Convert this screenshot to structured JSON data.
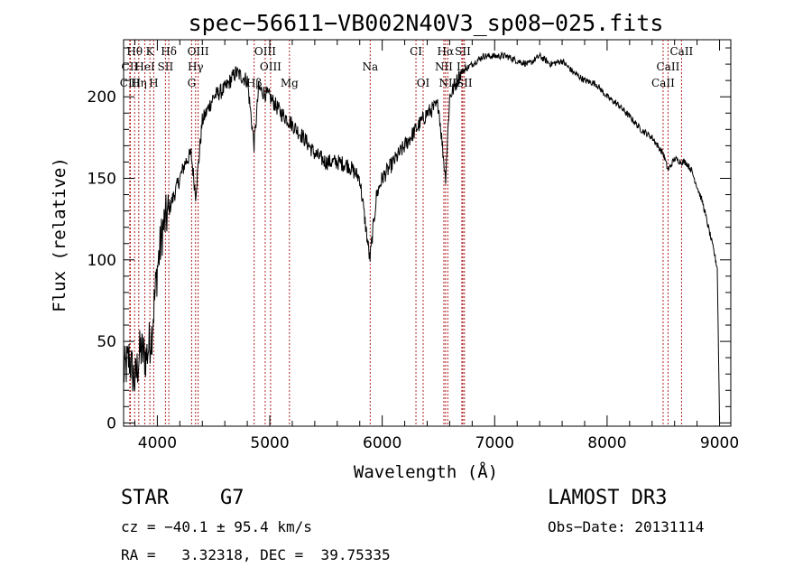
{
  "chart_data": {
    "type": "line",
    "title": "spec−56611−VB002N40V3_sp08−025.fits",
    "xlabel": "Wavelength (Å)",
    "ylabel": "Flux (relative)",
    "xlim": [
      3700,
      9100
    ],
    "ylim": [
      -2,
      235
    ],
    "xticks": [
      4000,
      5000,
      6000,
      7000,
      8000,
      9000
    ],
    "yticks": [
      0,
      50,
      100,
      150,
      200
    ],
    "series": [
      {
        "name": "spectrum",
        "x": [
          3700,
          3750,
          3800,
          3850,
          3900,
          3950,
          4000,
          4050,
          4100,
          4150,
          4200,
          4250,
          4300,
          4340,
          4400,
          4500,
          4600,
          4700,
          4800,
          4861,
          4900,
          5000,
          5100,
          5175,
          5300,
          5400,
          5500,
          5600,
          5700,
          5800,
          5890,
          5950,
          6000,
          6100,
          6200,
          6300,
          6400,
          6500,
          6563,
          6600,
          6700,
          6800,
          6900,
          7000,
          7100,
          7200,
          7300,
          7400,
          7500,
          7600,
          7700,
          7800,
          7900,
          8000,
          8100,
          8200,
          8300,
          8400,
          8500,
          8542,
          8600,
          8662,
          8700,
          8750,
          8800,
          8850,
          8900,
          8950,
          8980,
          9000
        ],
        "y": [
          30,
          40,
          25,
          45,
          40,
          55,
          95,
          120,
          130,
          140,
          150,
          160,
          165,
          140,
          185,
          200,
          205,
          215,
          210,
          170,
          205,
          200,
          190,
          185,
          175,
          165,
          160,
          160,
          158,
          150,
          100,
          140,
          150,
          160,
          170,
          180,
          190,
          195,
          150,
          200,
          215,
          220,
          225,
          225,
          225,
          222,
          220,
          225,
          220,
          222,
          215,
          210,
          208,
          200,
          195,
          188,
          180,
          175,
          165,
          155,
          162,
          160,
          160,
          155,
          145,
          135,
          120,
          105,
          95,
          2
        ]
      }
    ],
    "spectral_lines": [
      {
        "label": "Hθ",
        "wavelength": 3798,
        "row": 1
      },
      {
        "label": "K",
        "wavelength": 3934,
        "row": 1
      },
      {
        "label": "Hδ",
        "wavelength": 4102,
        "row": 1
      },
      {
        "label": "OIII",
        "wavelength": 4363,
        "row": 1
      },
      {
        "label": "OIII",
        "wavelength": 4959,
        "row": 1
      },
      {
        "label": "CI",
        "wavelength": 6300,
        "row": 1
      },
      {
        "label": "Hα",
        "wavelength": 6563,
        "row": 1
      },
      {
        "label": "SII",
        "wavelength": 6717,
        "row": 1
      },
      {
        "label": "CaII",
        "wavelength": 8662,
        "row": 1
      },
      {
        "label": "CII",
        "wavelength": 3755,
        "row": 2
      },
      {
        "label": "HeI",
        "wavelength": 3889,
        "row": 2
      },
      {
        "label": "SII",
        "wavelength": 4072,
        "row": 2
      },
      {
        "label": "Hγ",
        "wavelength": 4340,
        "row": 2
      },
      {
        "label": "OIII",
        "wavelength": 5007,
        "row": 2
      },
      {
        "label": "Na",
        "wavelength": 5893,
        "row": 2
      },
      {
        "label": "NII",
        "wavelength": 6548,
        "row": 2
      },
      {
        "label": "Li",
        "wavelength": 6708,
        "row": 2
      },
      {
        "label": "CaII",
        "wavelength": 8542,
        "row": 2
      },
      {
        "label": "CIII",
        "wavelength": 3760,
        "row": 3
      },
      {
        "label": "Hη",
        "wavelength": 3835,
        "row": 3
      },
      {
        "label": "H",
        "wavelength": 3968,
        "row": 3
      },
      {
        "label": "G",
        "wavelength": 4305,
        "row": 3
      },
      {
        "label": "Hβ",
        "wavelength": 4861,
        "row": 3
      },
      {
        "label": "Mg",
        "wavelength": 5175,
        "row": 3
      },
      {
        "label": "OI",
        "wavelength": 6364,
        "row": 3
      },
      {
        "label": "NII",
        "wavelength": 6583,
        "row": 3
      },
      {
        "label": "SII",
        "wavelength": 6731,
        "row": 3
      },
      {
        "label": "CaII",
        "wavelength": 8498,
        "row": 3
      }
    ]
  },
  "info": {
    "object_class": "STAR",
    "subclass": "G7",
    "survey": "LAMOST DR3",
    "cz_line": "cz = −40.1 ± 95.4 km/s",
    "obs_date_line": "Obs−Date: 20131114",
    "coords_line": "RA =   3.32318, DEC =  39.75335"
  }
}
